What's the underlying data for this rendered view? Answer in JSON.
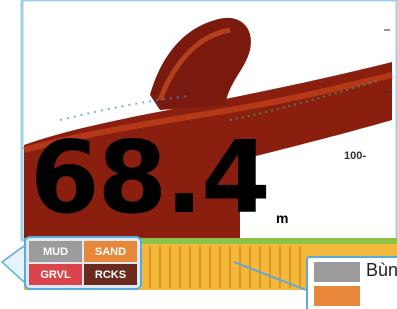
{
  "depth": {
    "value": "68.4",
    "unit": "m"
  },
  "scale_label": "100-",
  "bottom_legend": {
    "cells": [
      {
        "label": "MUD",
        "color": "#9b9b9b"
      },
      {
        "label": "SAND",
        "color": "#e8873a"
      },
      {
        "label": "GRVL",
        "color": "#d9454a"
      },
      {
        "label": "RCKS",
        "color": "#6b2a1f"
      }
    ]
  },
  "callout": {
    "items": [
      {
        "label": "Bùn",
        "color": "#9b9b9b"
      },
      {
        "color": "#e8873a"
      }
    ]
  }
}
